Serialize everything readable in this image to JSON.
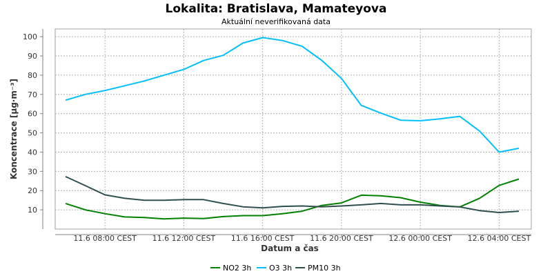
{
  "chart_data": {
    "type": "line",
    "title": "Lokalita: Bratislava, Mamateyova",
    "subtitle": "Aktuální neverifikovaná data",
    "xlabel": "Datum a čas",
    "ylabel": "Koncentrace [µg·m⁻³]",
    "ylim": [
      0,
      104
    ],
    "yticks": [
      10,
      20,
      30,
      40,
      50,
      60,
      70,
      80,
      90,
      100
    ],
    "grid": true,
    "legend": "bottom",
    "x": [
      "11.6 06:00",
      "11.6 07:00",
      "11.6 08:00",
      "11.6 09:00",
      "11.6 10:00",
      "11.6 11:00",
      "11.6 12:00",
      "11.6 13:00",
      "11.6 14:00",
      "11.6 15:00",
      "11.6 16:00",
      "11.6 17:00",
      "11.6 18:00",
      "11.6 19:00",
      "11.6 20:00",
      "11.6 21:00",
      "11.6 22:00",
      "11.6 23:00",
      "12.6 00:00",
      "12.6 01:00",
      "12.6 02:00",
      "12.6 03:00",
      "12.6 04:00",
      "12.6 05:00"
    ],
    "xticks": [
      {
        "x": "11.6 08:00",
        "label": "11.6 08:00 CEST"
      },
      {
        "x": "11.6 12:00",
        "label": "11.6 12:00 CEST"
      },
      {
        "x": "11.6 16:00",
        "label": "11.6 16:00 CEST"
      },
      {
        "x": "11.6 20:00",
        "label": "11.6 20:00 CEST"
      },
      {
        "x": "12.6 00:00",
        "label": "12.6 00:00 CEST"
      },
      {
        "x": "12.6 04:00",
        "label": "12.6 04:00 CEST"
      }
    ],
    "series": [
      {
        "name": "NO2 3h",
        "color": "#008000",
        "values": [
          13.3,
          10.0,
          8.0,
          6.3,
          6.0,
          5.3,
          5.7,
          5.5,
          6.5,
          7.0,
          7.0,
          8.0,
          9.3,
          12.3,
          13.6,
          17.6,
          17.3,
          16.3,
          14.0,
          12.3,
          11.5,
          16.0,
          22.7,
          26.0
        ]
      },
      {
        "name": "O3 3h",
        "color": "#00bfff",
        "values": [
          67.0,
          70.0,
          72.0,
          74.5,
          77.0,
          80.0,
          83.0,
          87.6,
          90.3,
          96.7,
          99.5,
          98.0,
          95.0,
          87.7,
          78.3,
          64.3,
          60.3,
          56.6,
          56.3,
          57.3,
          58.6,
          51.0,
          40.0,
          42.0
        ]
      },
      {
        "name": "PM10 3h",
        "color": "#2f4f4f",
        "values": [
          27.3,
          22.6,
          17.8,
          16.0,
          15.0,
          15.0,
          15.3,
          15.3,
          13.3,
          11.6,
          11.0,
          11.8,
          12.0,
          11.6,
          12.0,
          12.6,
          13.3,
          12.6,
          12.6,
          12.0,
          11.5,
          9.6,
          8.6,
          9.3
        ]
      }
    ]
  }
}
